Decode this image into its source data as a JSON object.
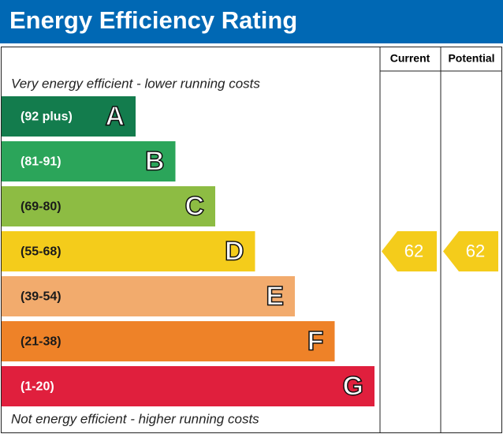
{
  "chart_data": {
    "type": "epc",
    "title": "Energy Efficiency Rating",
    "columns": [
      "Current",
      "Potential"
    ],
    "top_note": "Very energy efficient - lower running costs",
    "bottom_note": "Not energy efficient - higher running costs",
    "bands": [
      {
        "letter": "A",
        "range": "(92 plus)",
        "color": "#137c4d",
        "text_color": "#ffffff"
      },
      {
        "letter": "B",
        "range": "(81-91)",
        "color": "#2ba55a",
        "text_color": "#ffffff"
      },
      {
        "letter": "C",
        "range": "(69-80)",
        "color": "#8dbc43",
        "text_color": "#1a1a1a"
      },
      {
        "letter": "D",
        "range": "(55-68)",
        "color": "#f4cc1b",
        "text_color": "#1a1a1a"
      },
      {
        "letter": "E",
        "range": "(39-54)",
        "color": "#f2ab6d",
        "text_color": "#1a1a1a"
      },
      {
        "letter": "F",
        "range": "(21-38)",
        "color": "#ee8228",
        "text_color": "#1a1a1a"
      },
      {
        "letter": "G",
        "range": "(1-20)",
        "color": "#e01f3d",
        "text_color": "#ffffff"
      }
    ],
    "current": 62,
    "potential": 62
  }
}
